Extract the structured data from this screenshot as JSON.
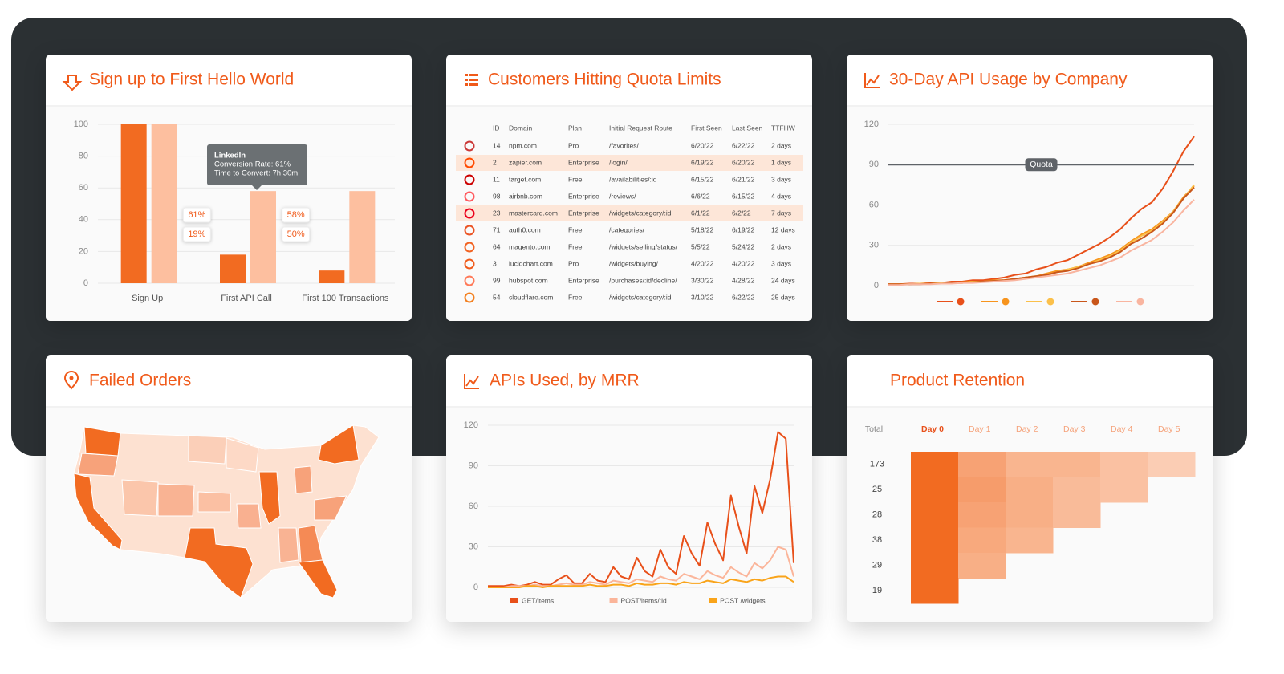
{
  "chart_data": [
    {
      "type": "bar",
      "title": "Sign up to First Hello World",
      "categories": [
        "Sign Up",
        "First API Call",
        "First 100 Transactions"
      ],
      "series": [
        {
          "color": "#f26b21",
          "values": [
            100,
            18,
            8
          ]
        },
        {
          "color": "#fdbf9f",
          "values": [
            100,
            58,
            58
          ]
        }
      ],
      "ylim": [
        0,
        100
      ],
      "yticks": [
        0,
        20,
        40,
        60,
        80,
        100
      ],
      "grid": true,
      "conversion_labels": [
        "61%",
        "19%",
        "58%",
        "50%"
      ],
      "tooltip": {
        "title": "LinkedIn",
        "lines": [
          "Conversion Rate: 61%",
          "Time to Convert: 7h 30m"
        ]
      }
    },
    {
      "type": "table",
      "title": "Customers Hitting Quota Limits",
      "columns": [
        "ID",
        "Domain",
        "Plan",
        "Initial Request Route",
        "First Seen",
        "Last Seen",
        "TTFHW"
      ],
      "rows": [
        [
          "14",
          "npm.com",
          "Pro",
          "/favorites/",
          "6/20/22",
          "6/22/22",
          "2 days"
        ],
        [
          "2",
          "zapier.com",
          "Enterprise",
          "/login/",
          "6/19/22",
          "6/20/22",
          "1 days"
        ],
        [
          "11",
          "target.com",
          "Free",
          "/availabilities/:id",
          "6/15/22",
          "6/21/22",
          "3 days"
        ],
        [
          "98",
          "airbnb.com",
          "Enterprise",
          "/reviews/",
          "6/6/22",
          "6/15/22",
          "4 days"
        ],
        [
          "23",
          "mastercard.com",
          "Enterprise",
          "/widgets/category/:id",
          "6/1/22",
          "6/2/22",
          "7 days"
        ],
        [
          "71",
          "auth0.com",
          "Free",
          "/categories/",
          "5/18/22",
          "6/19/22",
          "12 days"
        ],
        [
          "64",
          "magento.com",
          "Free",
          "/widgets/selling/status/",
          "5/5/22",
          "5/24/22",
          "2 days"
        ],
        [
          "3",
          "lucidchart.com",
          "Pro",
          "/widgets/buying/",
          "4/20/22",
          "4/20/22",
          "3 days"
        ],
        [
          "99",
          "hubspot.com",
          "Enterprise",
          "/purchases/:id/decline/",
          "3/30/22",
          "4/28/22",
          "24 days"
        ],
        [
          "54",
          "cloudflare.com",
          "Free",
          "/widgets/category/:id",
          "3/10/22",
          "6/22/22",
          "25 days"
        ]
      ],
      "highlighted_rows": [
        1,
        4
      ]
    },
    {
      "type": "line",
      "title": "30-Day API Usage by Company",
      "series": [
        {
          "color": "#e8501a",
          "values": [
            1,
            1,
            1.5,
            1.5,
            2,
            2,
            3,
            3,
            4,
            4,
            5,
            6,
            8,
            9,
            12,
            14,
            17,
            19,
            23,
            27,
            31,
            36,
            42,
            50,
            57,
            62,
            72,
            85,
            100,
            111
          ]
        },
        {
          "color": "#f7941d",
          "values": [
            1,
            1,
            1,
            1.5,
            1.5,
            2,
            2,
            2.5,
            3,
            3,
            4,
            4,
            5,
            6,
            7,
            9,
            11,
            12,
            14,
            17,
            20,
            23,
            27,
            33,
            38,
            42,
            48,
            55,
            66,
            74
          ]
        },
        {
          "color": "#fbc04a",
          "values": [
            1,
            1,
            1,
            1.5,
            1.5,
            2,
            2,
            2,
            3,
            3,
            3.5,
            4,
            5,
            6,
            7,
            8,
            10,
            12,
            14,
            16,
            19,
            22,
            26,
            32,
            37,
            41,
            47,
            55,
            65,
            75
          ]
        },
        {
          "color": "#c9561a",
          "values": [
            1,
            1,
            1,
            1,
            1.5,
            1.5,
            2,
            2,
            2.5,
            3,
            3.5,
            4,
            5,
            6,
            7,
            8,
            10,
            11,
            13,
            16,
            18,
            21,
            25,
            31,
            35,
            40,
            46,
            54,
            65,
            73
          ]
        },
        {
          "color": "#f9b5a0",
          "values": [
            0.5,
            0.5,
            1,
            1,
            1,
            1.5,
            1.5,
            2,
            2,
            2.5,
            3,
            3.5,
            4,
            5,
            6,
            7,
            8,
            9,
            11,
            13,
            15,
            18,
            21,
            26,
            30,
            34,
            40,
            47,
            56,
            64
          ]
        }
      ],
      "ylim": [
        0,
        120
      ],
      "yticks": [
        0,
        30,
        60,
        90,
        120
      ],
      "grid": true,
      "reference": {
        "label": "Quota",
        "value": 90,
        "color": "#5f6368"
      }
    },
    {
      "type": "map",
      "title": "Failed Orders"
    },
    {
      "type": "line",
      "title": "APIs Used, by MRR",
      "series": [
        {
          "name": "GET/items",
          "color": "#e8501a",
          "values": [
            1,
            1,
            1,
            2,
            1,
            2,
            4,
            2,
            2,
            6,
            9,
            3,
            3,
            10,
            5,
            4,
            15,
            8,
            6,
            22,
            12,
            8,
            28,
            15,
            10,
            38,
            25,
            16,
            48,
            32,
            20,
            68,
            45,
            25,
            75,
            55,
            80,
            115,
            110,
            18
          ]
        },
        {
          "name": "POST/items/:id",
          "color": "#fbb59a",
          "values": [
            0,
            0,
            0,
            1,
            1,
            1,
            2,
            1,
            1,
            2,
            3,
            2,
            2,
            4,
            3,
            2,
            5,
            4,
            3,
            6,
            5,
            4,
            8,
            6,
            5,
            10,
            8,
            6,
            12,
            9,
            7,
            15,
            11,
            8,
            18,
            14,
            20,
            30,
            28,
            8
          ]
        },
        {
          "name": "POST /widgets",
          "color": "#f9a41a",
          "values": [
            0,
            0,
            0,
            0,
            0,
            1,
            1,
            0,
            1,
            1,
            1,
            1,
            1,
            2,
            1,
            1,
            2,
            2,
            1,
            3,
            2,
            2,
            3,
            3,
            2,
            4,
            3,
            3,
            5,
            4,
            3,
            6,
            5,
            4,
            6,
            5,
            7,
            8,
            8,
            4
          ]
        }
      ],
      "ylim": [
        0,
        120
      ],
      "yticks": [
        0,
        30,
        60,
        90,
        120
      ],
      "grid": true
    },
    {
      "type": "heatmap",
      "title": "Product Retention",
      "total_header": "Total",
      "columns": [
        "Day 0",
        "Day 1",
        "Day 2",
        "Day 3",
        "Day 4",
        "Day 5"
      ],
      "rows": [
        {
          "total": 173,
          "values": [
            100,
            55,
            40,
            40,
            30,
            20
          ]
        },
        {
          "total": 25,
          "values": [
            100,
            60,
            45,
            35,
            30
          ]
        },
        {
          "total": 28,
          "values": [
            100,
            55,
            45,
            35
          ]
        },
        {
          "total": 38,
          "values": [
            100,
            50,
            40
          ]
        },
        {
          "total": 29,
          "values": [
            100,
            45
          ]
        },
        {
          "total": 19,
          "values": [
            100
          ]
        }
      ],
      "color_range": [
        0,
        100
      ],
      "colors": [
        "#fde6d9",
        "#f26b21"
      ]
    }
  ]
}
